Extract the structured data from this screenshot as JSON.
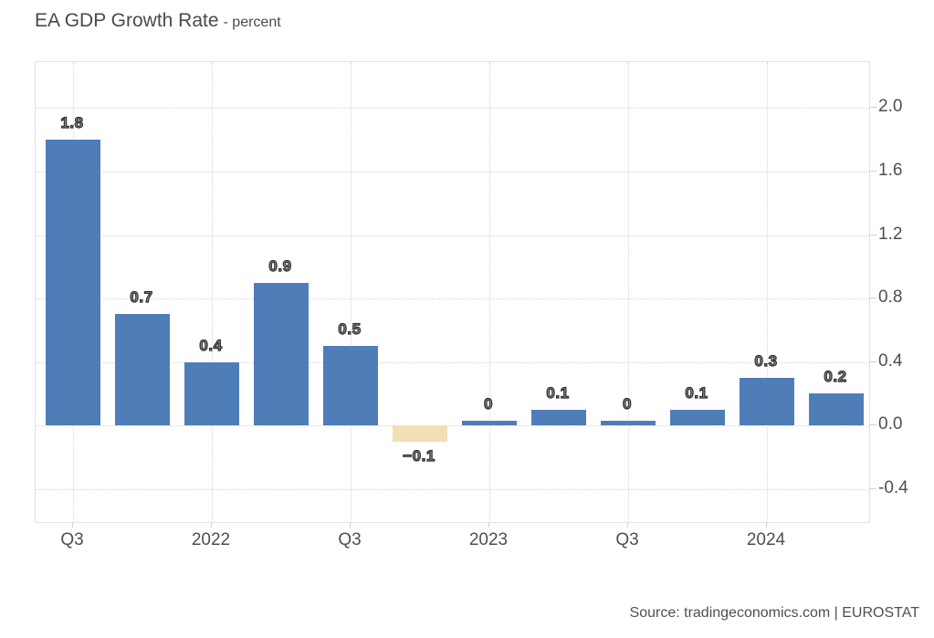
{
  "title": {
    "main": "EA GDP Growth Rate",
    "sub": "- percent"
  },
  "source": "Source: tradingeconomics.com | EUROSTAT",
  "colors": {
    "bar_positive": "#4F7DB8",
    "bar_negative": "#F2DFB5",
    "grid": "#d6d6d6",
    "axis_text": "#4f4f4f"
  },
  "chart_data": {
    "type": "bar",
    "title": "EA GDP Growth Rate",
    "ylabel": "percent",
    "x": [
      0,
      1,
      2,
      3,
      4,
      5,
      6,
      7,
      8,
      9,
      10,
      11
    ],
    "values": [
      1.8,
      0.7,
      0.4,
      0.9,
      0.5,
      -0.1,
      0,
      0.1,
      0,
      0.1,
      0.3,
      0.2
    ],
    "value_labels": [
      "1.8",
      "0.7",
      "0.4",
      "0.9",
      "0.5",
      "−0.1",
      "0",
      "0.1",
      "0",
      "0.1",
      "0.3",
      "0.2"
    ],
    "x_tick_labels": [
      "Q3",
      "2022",
      "Q3",
      "2023",
      "Q3",
      "2024"
    ],
    "x_tick_indices": [
      0,
      2,
      4,
      6,
      8,
      10
    ],
    "y_ticks": [
      2.0,
      1.6,
      1.2,
      0.8,
      0.4,
      0.0,
      -0.4
    ],
    "y_tick_labels": [
      "2.0",
      "1.6",
      "1.2",
      "0.8",
      "0.4",
      "0.0",
      "-0.4"
    ],
    "ylim": [
      -0.62,
      2.29
    ],
    "grid": true,
    "legend": false,
    "negative_color_for": [
      5
    ]
  }
}
